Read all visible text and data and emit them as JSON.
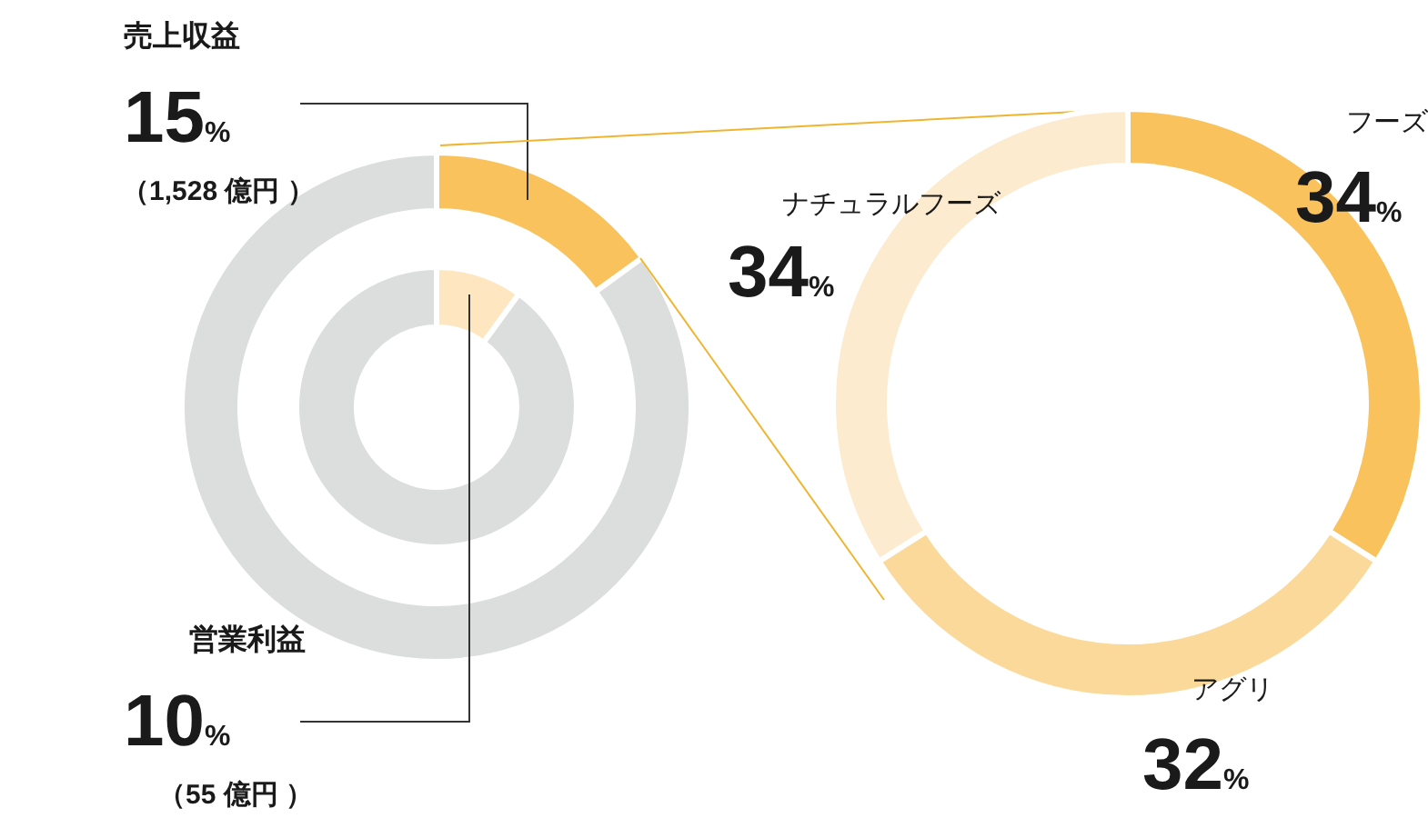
{
  "chart_data": [
    {
      "type": "donut",
      "categories": [
        null,
        null
      ],
      "series": [
        {
          "values": [
            15,
            85
          ],
          "colors": [
            "#f9c25c",
            "#dcdddd"
          ],
          "value_labels": [
            "15%",
            null
          ]
        },
        {
          "values": [
            10,
            90
          ],
          "colors": [
            "#fde6c0",
            "#dcdddd"
          ],
          "value_labels": [
            "10%",
            null
          ]
        }
      ],
      "annotations": [
        "売上収益",
        "（1,528 億円 ）",
        "営業利益",
        "（55 億円 ）"
      ]
    },
    {
      "type": "donut",
      "categories": [
        "フーズ",
        "アグリ",
        "ナチュラルフーズ"
      ],
      "values": [
        34,
        32,
        34
      ],
      "colors": [
        "#f9c25c",
        "#fbd99b",
        "#fdebd0"
      ],
      "value_labels": [
        "34%",
        "32%",
        "34%"
      ]
    }
  ]
}
